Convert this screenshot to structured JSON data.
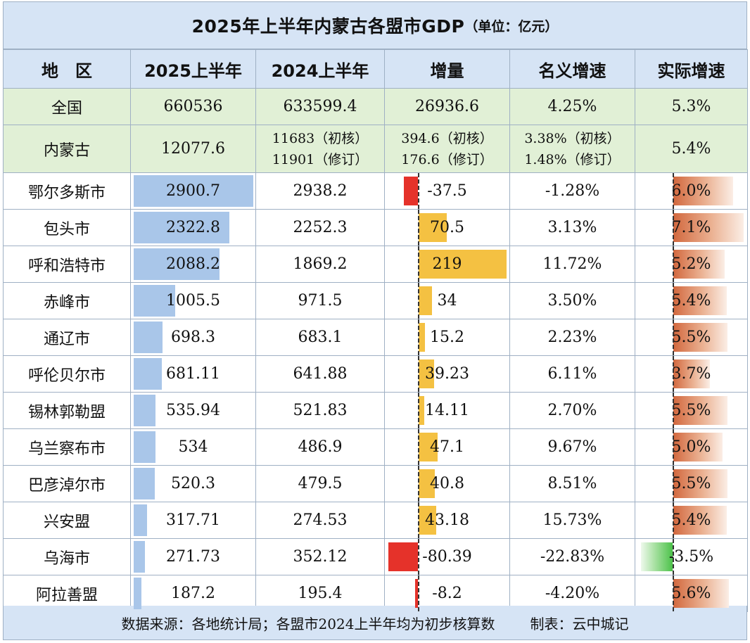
{
  "title": "2025年上半年内蒙古各盟市GDP",
  "unit": "（单位：亿元）",
  "headers": [
    "地　区",
    "2025上半年",
    "2024上半年",
    "增量",
    "名义增速",
    "实际增速"
  ],
  "national": {
    "region": "全国",
    "h1_2025": "660536",
    "h1_2024": "633599.4",
    "increment": "26936.6",
    "nominal": "4.25%",
    "real": "5.3%"
  },
  "inner_mongolia": {
    "region": "内蒙古",
    "h1_2025": "12077.6",
    "h1_2024_lines": [
      "11683（初核）",
      "11901（修订）"
    ],
    "increment_lines": [
      "394.6（初核）",
      "176.6（修订）"
    ],
    "nominal_lines": [
      "3.38%（初核）",
      "1.48%（修订）"
    ],
    "real": "5.4%"
  },
  "colors": {
    "gdp_bar": "#a9c6e9",
    "increase": "#f4c142",
    "decrease": "#e5322a",
    "real_pos": "#d2683e",
    "real_neg": "#4cc24a"
  },
  "chart_data": {
    "type": "table",
    "title": "2025年上半年内蒙古各盟市GDP",
    "unit": "亿元",
    "columns": [
      "地区",
      "2025上半年",
      "2024上半年",
      "增量",
      "名义增速",
      "实际增速"
    ],
    "rows": [
      {
        "region": "鄂尔多斯市",
        "h1_2025": 2900.7,
        "h1_2024": 2938.2,
        "increment": -37.5,
        "nominal": -1.28,
        "real": 6.0,
        "h1_2025_label": "2900.7",
        "h1_2024_label": "2938.2",
        "increment_label": "-37.5",
        "nominal_label": "-1.28%",
        "real_label": "6.0%"
      },
      {
        "region": "包头市",
        "h1_2025": 2322.8,
        "h1_2024": 2252.3,
        "increment": 70.5,
        "nominal": 3.13,
        "real": 7.1,
        "h1_2025_label": "2322.8",
        "h1_2024_label": "2252.3",
        "increment_label": "70.5",
        "nominal_label": "3.13%",
        "real_label": "7.1%"
      },
      {
        "region": "呼和浩特市",
        "h1_2025": 2088.2,
        "h1_2024": 1869.2,
        "increment": 219,
        "nominal": 11.72,
        "real": 5.2,
        "h1_2025_label": "2088.2",
        "h1_2024_label": "1869.2",
        "increment_label": "219",
        "nominal_label": "11.72%",
        "real_label": "5.2%"
      },
      {
        "region": "赤峰市",
        "h1_2025": 1005.5,
        "h1_2024": 971.5,
        "increment": 34,
        "nominal": 3.5,
        "real": 5.4,
        "h1_2025_label": "1005.5",
        "h1_2024_label": "971.5",
        "increment_label": "34",
        "nominal_label": "3.50%",
        "real_label": "5.4%"
      },
      {
        "region": "通辽市",
        "h1_2025": 698.3,
        "h1_2024": 683.1,
        "increment": 15.2,
        "nominal": 2.23,
        "real": 5.5,
        "h1_2025_label": "698.3",
        "h1_2024_label": "683.1",
        "increment_label": "15.2",
        "nominal_label": "2.23%",
        "real_label": "5.5%"
      },
      {
        "region": "呼伦贝尔市",
        "h1_2025": 681.11,
        "h1_2024": 641.88,
        "increment": 39.23,
        "nominal": 6.11,
        "real": 3.7,
        "h1_2025_label": "681.11",
        "h1_2024_label": "641.88",
        "increment_label": "39.23",
        "nominal_label": "6.11%",
        "real_label": "3.7%"
      },
      {
        "region": "锡林郭勒盟",
        "h1_2025": 535.94,
        "h1_2024": 521.83,
        "increment": 14.11,
        "nominal": 2.7,
        "real": 5.5,
        "h1_2025_label": "535.94",
        "h1_2024_label": "521.83",
        "increment_label": "14.11",
        "nominal_label": "2.70%",
        "real_label": "5.5%"
      },
      {
        "region": "乌兰察布市",
        "h1_2025": 534,
        "h1_2024": 486.9,
        "increment": 47.1,
        "nominal": 9.67,
        "real": 5.0,
        "h1_2025_label": "534",
        "h1_2024_label": "486.9",
        "increment_label": "47.1",
        "nominal_label": "9.67%",
        "real_label": "5.0%"
      },
      {
        "region": "巴彦淖尔市",
        "h1_2025": 520.3,
        "h1_2024": 479.5,
        "increment": 40.8,
        "nominal": 8.51,
        "real": 5.5,
        "h1_2025_label": "520.3",
        "h1_2024_label": "479.5",
        "increment_label": "40.8",
        "nominal_label": "8.51%",
        "real_label": "5.5%"
      },
      {
        "region": "兴安盟",
        "h1_2025": 317.71,
        "h1_2024": 274.53,
        "increment": 43.18,
        "nominal": 15.73,
        "real": 5.4,
        "h1_2025_label": "317.71",
        "h1_2024_label": "274.53",
        "increment_label": "43.18",
        "nominal_label": "15.73%",
        "real_label": "5.4%"
      },
      {
        "region": "乌海市",
        "h1_2025": 271.73,
        "h1_2024": 352.12,
        "increment": -80.39,
        "nominal": -22.83,
        "real": -3.5,
        "h1_2025_label": "271.73",
        "h1_2024_label": "352.12",
        "increment_label": "-80.39",
        "nominal_label": "-22.83%",
        "real_label": "-3.5%"
      },
      {
        "region": "阿拉善盟",
        "h1_2025": 187.2,
        "h1_2024": 195.4,
        "increment": -8.2,
        "nominal": -4.2,
        "real": 5.6,
        "h1_2025_label": "187.2",
        "h1_2024_label": "195.4",
        "increment_label": "-8.2",
        "nominal_label": "-4.20%",
        "real_label": "5.6%"
      }
    ]
  },
  "footer": {
    "source": "数据来源：各地统计局；各盟市2024上半年均为初步核算数",
    "author": "制表：云中城记"
  }
}
